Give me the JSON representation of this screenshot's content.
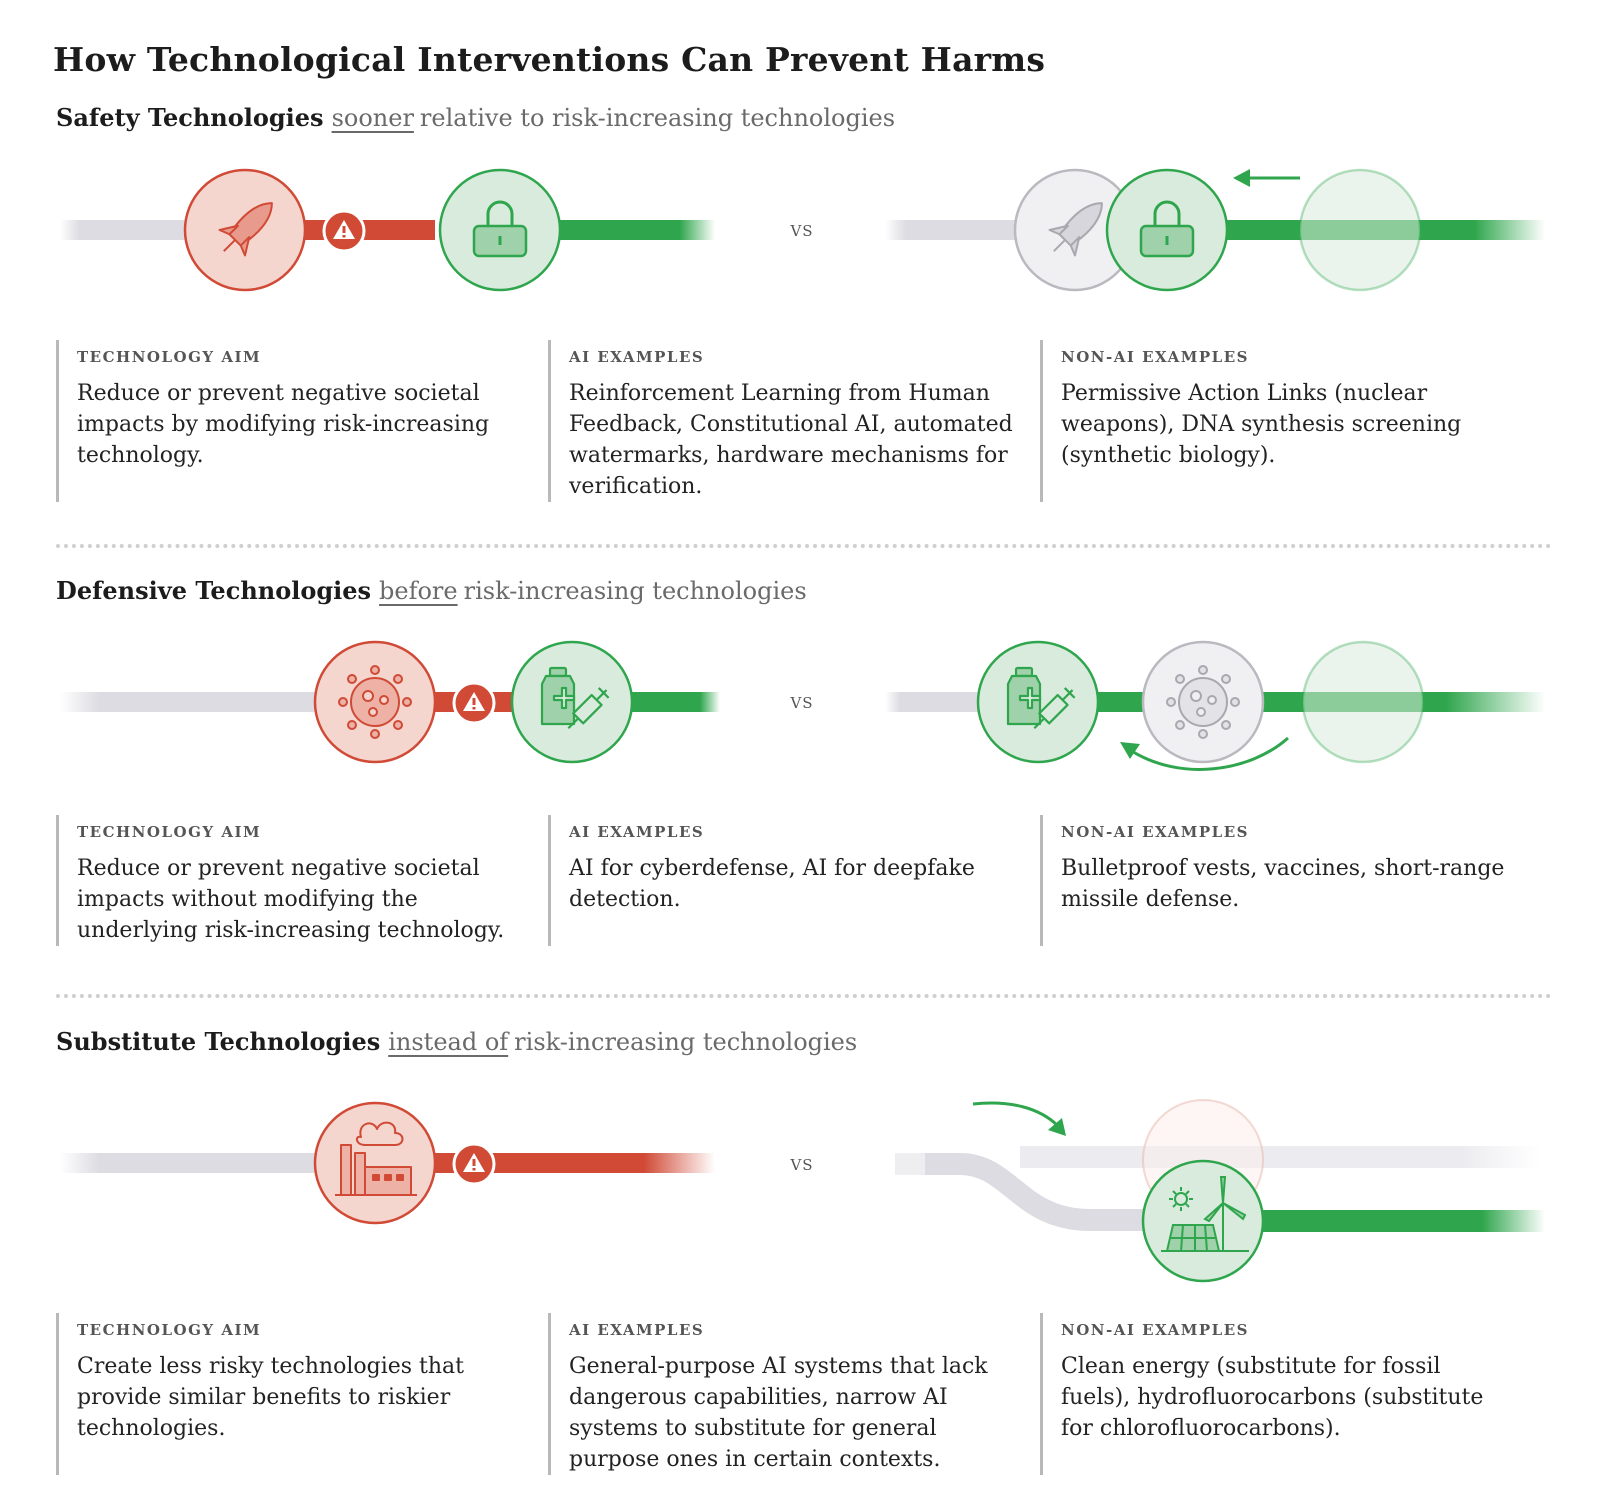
{
  "title": "How Technological Interventions Can Prevent Harms",
  "vs_label": "VS",
  "colors": {
    "red": "#d04a36",
    "red_fill": "#f5d6cf",
    "green": "#2fa64d",
    "green_fill": "#d9ebdc",
    "gray_track": "#dcdce2",
    "gray_circle": "#f0f0f3"
  },
  "sections": [
    {
      "heading_strong": "Safety Technologies",
      "heading_emph": "sooner",
      "heading_rest": "relative to risk-increasing technologies",
      "icons": [
        "rocket-icon",
        "lock-icon",
        "warning-icon"
      ],
      "columns": [
        {
          "label": "TECHNOLOGY AIM",
          "text": "Reduce or prevent negative societal impacts by modifying risk-increasing technology."
        },
        {
          "label": "AI EXAMPLES",
          "text": "Reinforcement Learning from Human Feedback, Constitutional AI, automated watermarks, hardware mechanisms for verification."
        },
        {
          "label": "NON-AI EXAMPLES",
          "text": "Permissive Action Links (nuclear weapons), DNA synthesis screening (synthetic biology)."
        }
      ]
    },
    {
      "heading_strong": "Defensive Technologies",
      "heading_emph": "before",
      "heading_rest": "risk-increasing technologies",
      "icons": [
        "virus-icon",
        "vaccine-icon",
        "warning-icon"
      ],
      "columns": [
        {
          "label": "TECHNOLOGY AIM",
          "text": "Reduce or prevent negative societal impacts without modifying the underlying risk-increasing technology."
        },
        {
          "label": "AI EXAMPLES",
          "text": "AI for cyberdefense, AI for deepfake detection."
        },
        {
          "label": "NON-AI EXAMPLES",
          "text": "Bulletproof vests, vaccines, short-range missile defense."
        }
      ]
    },
    {
      "heading_strong": "Substitute Technologies",
      "heading_emph": "instead of",
      "heading_rest": "risk-increasing technologies",
      "icons": [
        "factory-icon",
        "clean-energy-icon",
        "warning-icon"
      ],
      "columns": [
        {
          "label": "TECHNOLOGY AIM",
          "text": "Create less risky technologies that provide similar benefits to riskier technologies."
        },
        {
          "label": "AI EXAMPLES",
          "text": "General-purpose AI systems that lack dangerous capabilities, narrow AI systems to substitute for general purpose ones in certain contexts."
        },
        {
          "label": "NON-AI EXAMPLES",
          "text": "Clean energy (substitute for fossil fuels), hydrofluorocarbons (substitute for chlorofluorocarbons)."
        }
      ]
    }
  ]
}
